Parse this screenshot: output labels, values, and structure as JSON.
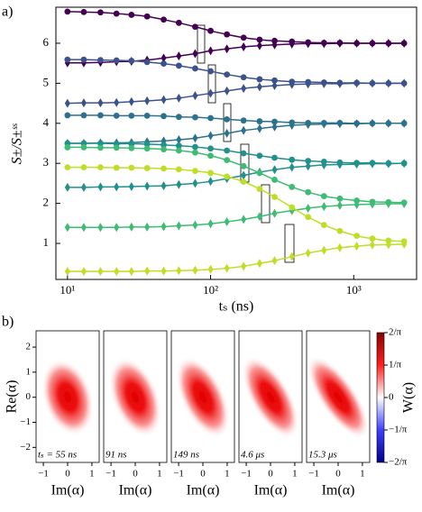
{
  "chart_data": [
    {
      "type": "scatter-line",
      "panel_label": "a)",
      "ylabel": "S±/S±ˢˢ",
      "xlabel": "tₛ (ns)",
      "xscale": "log",
      "xlim": [
        8.3,
        2750
      ],
      "ylim": [
        0.1,
        6.9
      ],
      "xticks": [
        {
          "value": 10,
          "label": "10¹"
        },
        {
          "value": 100,
          "label": "10²"
        },
        {
          "value": 1000,
          "label": "10³"
        }
      ],
      "yticks": [
        1,
        2,
        3,
        4,
        5,
        6
      ],
      "x": [
        10,
        13,
        17,
        22,
        28,
        36,
        47,
        60,
        78,
        100,
        130,
        170,
        220,
        280,
        370,
        480,
        620,
        800,
        1050,
        1350,
        1750,
        2250
      ],
      "series": [
        {
          "color": "#440154",
          "marker": "circle",
          "values": [
            6.79,
            6.78,
            6.77,
            6.74,
            6.71,
            6.67,
            6.59,
            6.51,
            6.41,
            6.31,
            6.22,
            6.14,
            6.09,
            6.06,
            6.04,
            6.02,
            6.01,
            6.01,
            6.0,
            6.0,
            6.0,
            6.0
          ]
        },
        {
          "color": "#440154",
          "marker": "diamond",
          "values": [
            5.51,
            5.51,
            5.52,
            5.54,
            5.55,
            5.58,
            5.63,
            5.68,
            5.74,
            5.81,
            5.86,
            5.91,
            5.94,
            5.96,
            5.98,
            5.99,
            5.99,
            6.0,
            6.0,
            6.0,
            6.0,
            6.0
          ]
        },
        {
          "color": "#3b528b",
          "marker": "circle",
          "values": [
            5.59,
            5.59,
            5.58,
            5.57,
            5.56,
            5.53,
            5.49,
            5.44,
            5.37,
            5.3,
            5.22,
            5.15,
            5.1,
            5.07,
            5.04,
            5.03,
            5.02,
            5.01,
            5.01,
            5.0,
            5.0,
            5.0
          ]
        },
        {
          "color": "#3b528b",
          "marker": "diamond",
          "values": [
            4.5,
            4.51,
            4.51,
            4.52,
            4.54,
            4.56,
            4.59,
            4.63,
            4.69,
            4.75,
            4.81,
            4.87,
            4.91,
            4.94,
            4.97,
            4.98,
            4.99,
            4.99,
            5.0,
            5.0,
            5.0,
            5.0
          ]
        },
        {
          "color": "#2c728e",
          "marker": "circle",
          "values": [
            4.2,
            4.2,
            4.2,
            4.19,
            4.19,
            4.19,
            4.18,
            4.16,
            4.15,
            4.13,
            4.1,
            4.07,
            4.05,
            4.04,
            4.02,
            4.01,
            4.01,
            4.01,
            4.0,
            4.0,
            4.0,
            4.0
          ]
        },
        {
          "color": "#2c728e",
          "marker": "diamond",
          "values": [
            3.5,
            3.5,
            3.51,
            3.51,
            3.52,
            3.54,
            3.56,
            3.59,
            3.63,
            3.69,
            3.75,
            3.82,
            3.87,
            3.91,
            3.95,
            3.97,
            3.98,
            3.99,
            3.99,
            4.0,
            4.0,
            4.0
          ]
        },
        {
          "color": "#21918c",
          "marker": "circle",
          "values": [
            3.5,
            3.5,
            3.5,
            3.49,
            3.49,
            3.48,
            3.46,
            3.44,
            3.41,
            3.37,
            3.32,
            3.25,
            3.19,
            3.14,
            3.09,
            3.06,
            3.04,
            3.02,
            3.01,
            3.01,
            3.0,
            3.0
          ]
        },
        {
          "color": "#21918c",
          "marker": "diamond",
          "values": [
            2.4,
            2.4,
            2.41,
            2.41,
            2.42,
            2.43,
            2.44,
            2.47,
            2.5,
            2.55,
            2.62,
            2.7,
            2.78,
            2.84,
            2.9,
            2.93,
            2.96,
            2.97,
            2.98,
            2.99,
            2.99,
            3.0
          ]
        },
        {
          "color": "#3fbc73",
          "marker": "circle",
          "values": [
            3.4,
            3.4,
            3.39,
            3.39,
            3.38,
            3.37,
            3.35,
            3.32,
            3.27,
            3.19,
            3.08,
            2.93,
            2.76,
            2.59,
            2.41,
            2.28,
            2.18,
            2.12,
            2.07,
            2.04,
            2.03,
            2.02
          ]
        },
        {
          "color": "#3fbc73",
          "marker": "diamond",
          "values": [
            1.4,
            1.4,
            1.4,
            1.4,
            1.41,
            1.41,
            1.42,
            1.44,
            1.46,
            1.49,
            1.54,
            1.6,
            1.67,
            1.75,
            1.82,
            1.88,
            1.92,
            1.95,
            1.97,
            1.98,
            1.99,
            1.99
          ]
        },
        {
          "color": "#bddf26",
          "marker": "circle",
          "values": [
            2.9,
            2.9,
            2.9,
            2.89,
            2.89,
            2.88,
            2.87,
            2.85,
            2.81,
            2.76,
            2.67,
            2.54,
            2.36,
            2.16,
            1.9,
            1.66,
            1.46,
            1.31,
            1.19,
            1.12,
            1.07,
            1.05
          ]
        },
        {
          "color": "#bddf26",
          "marker": "diamond",
          "values": [
            0.3,
            0.3,
            0.3,
            0.3,
            0.3,
            0.31,
            0.31,
            0.32,
            0.33,
            0.35,
            0.38,
            0.43,
            0.5,
            0.57,
            0.67,
            0.76,
            0.83,
            0.89,
            0.93,
            0.96,
            0.97,
            0.98
          ]
        }
      ]
    },
    {
      "type": "heatmap",
      "panel_label": "b)",
      "xlabel": "Im(α)",
      "ylabel": "Re(α)",
      "xlim": [
        -1.3,
        1.3
      ],
      "ylim": [
        -2.6,
        2.65
      ],
      "xticks": [
        {
          "value": -1,
          "label": "−1"
        },
        0,
        1
      ],
      "yticks": [
        {
          "value": -2,
          "label": "−2"
        },
        {
          "value": -1,
          "label": "−1"
        },
        0,
        1,
        2
      ],
      "panels": [
        "tₛ = 55 ns",
        "91 ns",
        "149 ns",
        "4.6 μs",
        "15.3 μs"
      ],
      "colorbar": {
        "label": "W(α)",
        "lim": [
          -0.6366,
          0.6366
        ],
        "ticks": [
          {
            "value": 0.6366,
            "label": "2/π"
          },
          {
            "value": 0.3183,
            "label": "1/π"
          },
          0,
          {
            "value": -0.3183,
            "label": "−1/π"
          },
          {
            "value": -0.6366,
            "label": "−2/π"
          }
        ]
      }
    }
  ]
}
